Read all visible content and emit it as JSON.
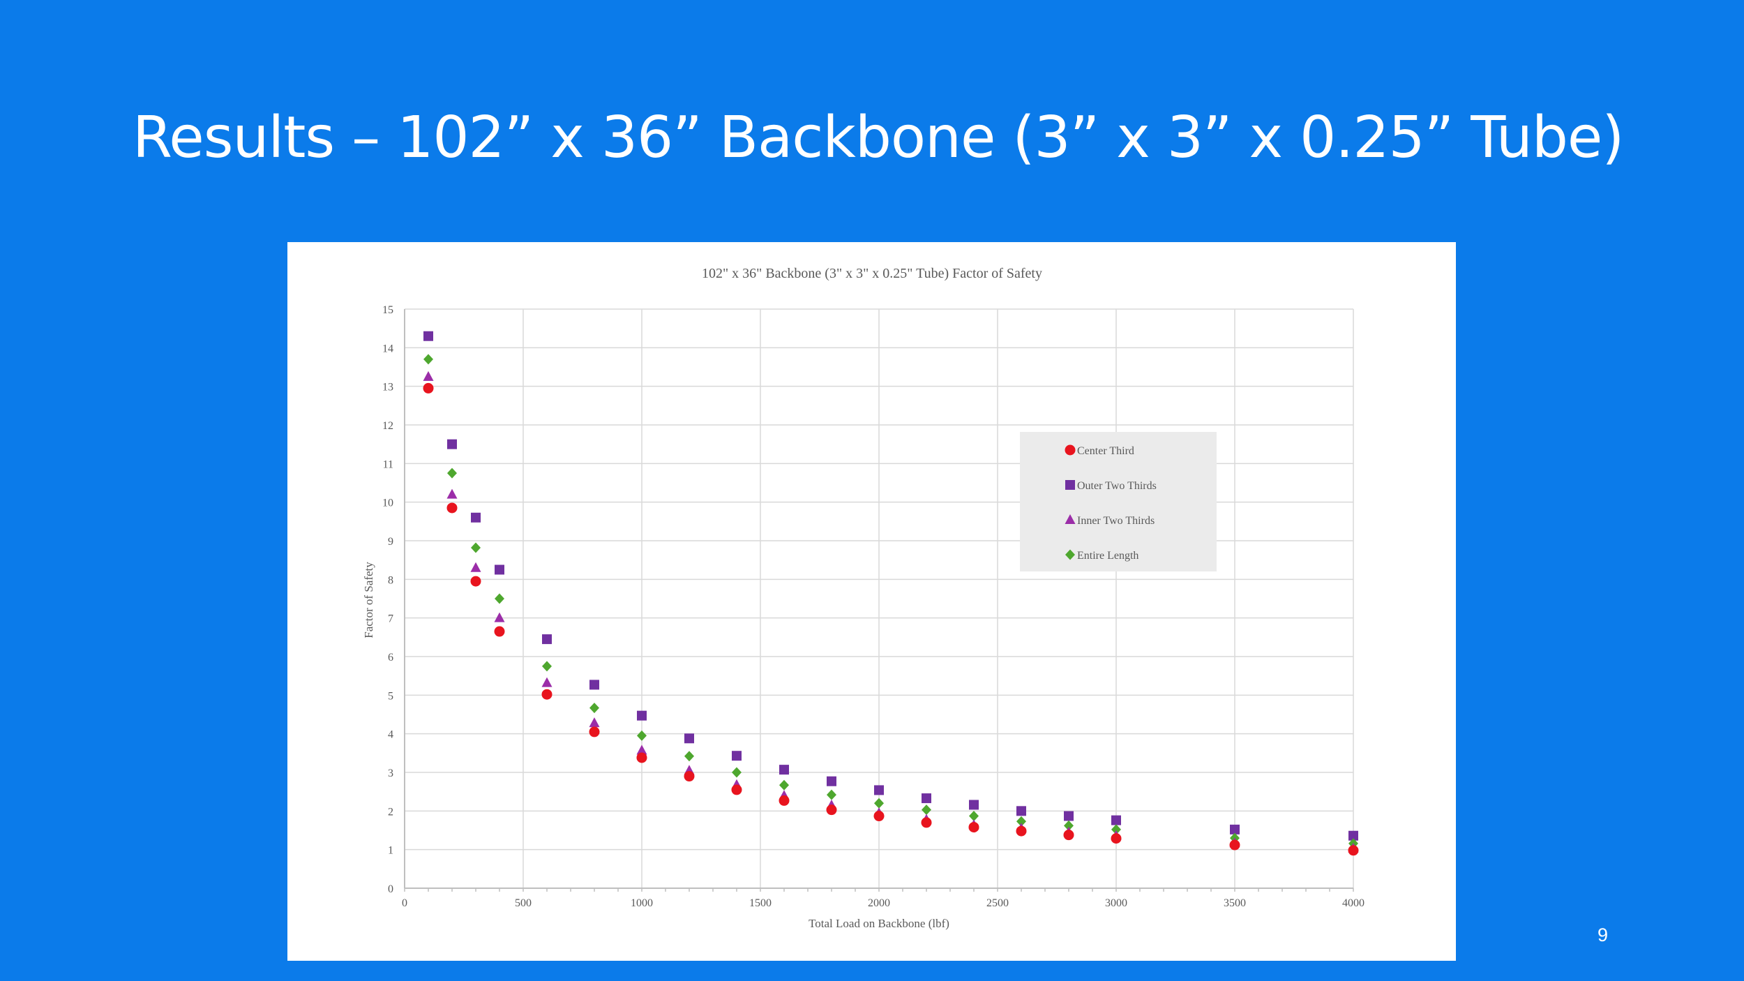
{
  "slide": {
    "title": "Results – 102” x 36” Backbone (3” x 3” x 0.25” Tube)",
    "page_number": "9"
  },
  "colors": {
    "background": "#0B7BEA",
    "Center Third": "#E8141E",
    "Outer Two Thirds": "#7030A0",
    "Inner Two Thirds": "#9B2DA8",
    "Entire Length": "#4EA72E",
    "legend_bg": "#EBEBEB",
    "grid": "#D9D9D9"
  },
  "chart_data": {
    "type": "scatter",
    "title": "102\" x 36\" Backbone (3\" x 3\" x 0.25\" Tube) Factor of Safety",
    "xlabel": "Total Load on Backbone (lbf)",
    "ylabel": "Factor of Safety",
    "xlim": [
      0,
      4000
    ],
    "ylim": [
      0,
      15
    ],
    "xticks": [
      0,
      500,
      1000,
      1500,
      2000,
      2500,
      3000,
      3500,
      4000
    ],
    "yticks": [
      0,
      1,
      2,
      3,
      4,
      5,
      6,
      7,
      8,
      9,
      10,
      11,
      12,
      13,
      14,
      15
    ],
    "grid": true,
    "legend_position": "right",
    "x": [
      100,
      200,
      300,
      400,
      600,
      800,
      1000,
      1200,
      1400,
      1600,
      1800,
      2000,
      2200,
      2400,
      2600,
      2800,
      3000,
      3500,
      4000
    ],
    "series": [
      {
        "name": "Center Third",
        "marker": "circle",
        "values": [
          12.95,
          9.85,
          7.95,
          6.65,
          5.02,
          4.05,
          3.38,
          2.9,
          2.55,
          2.27,
          2.03,
          1.87,
          1.7,
          1.58,
          1.48,
          1.38,
          1.29,
          1.12,
          0.98
        ]
      },
      {
        "name": "Outer Two Thirds",
        "marker": "square",
        "values": [
          14.3,
          11.5,
          9.6,
          8.25,
          6.45,
          5.27,
          4.47,
          3.88,
          3.43,
          3.07,
          2.77,
          2.54,
          2.33,
          2.16,
          2.0,
          1.87,
          1.76,
          1.52,
          1.36
        ]
      },
      {
        "name": "Inner Two Thirds",
        "marker": "triangle",
        "values": [
          13.25,
          10.2,
          8.3,
          7.0,
          5.32,
          4.28,
          3.57,
          3.05,
          2.68,
          2.4,
          2.15,
          1.95,
          1.78,
          1.64,
          1.55,
          1.45,
          1.36,
          1.17,
          1.03
        ]
      },
      {
        "name": "Entire Length",
        "marker": "diamond",
        "values": [
          13.7,
          10.75,
          8.82,
          7.5,
          5.75,
          4.67,
          3.95,
          3.42,
          3.0,
          2.67,
          2.42,
          2.2,
          2.03,
          1.87,
          1.73,
          1.62,
          1.52,
          1.3,
          1.16
        ]
      }
    ]
  }
}
